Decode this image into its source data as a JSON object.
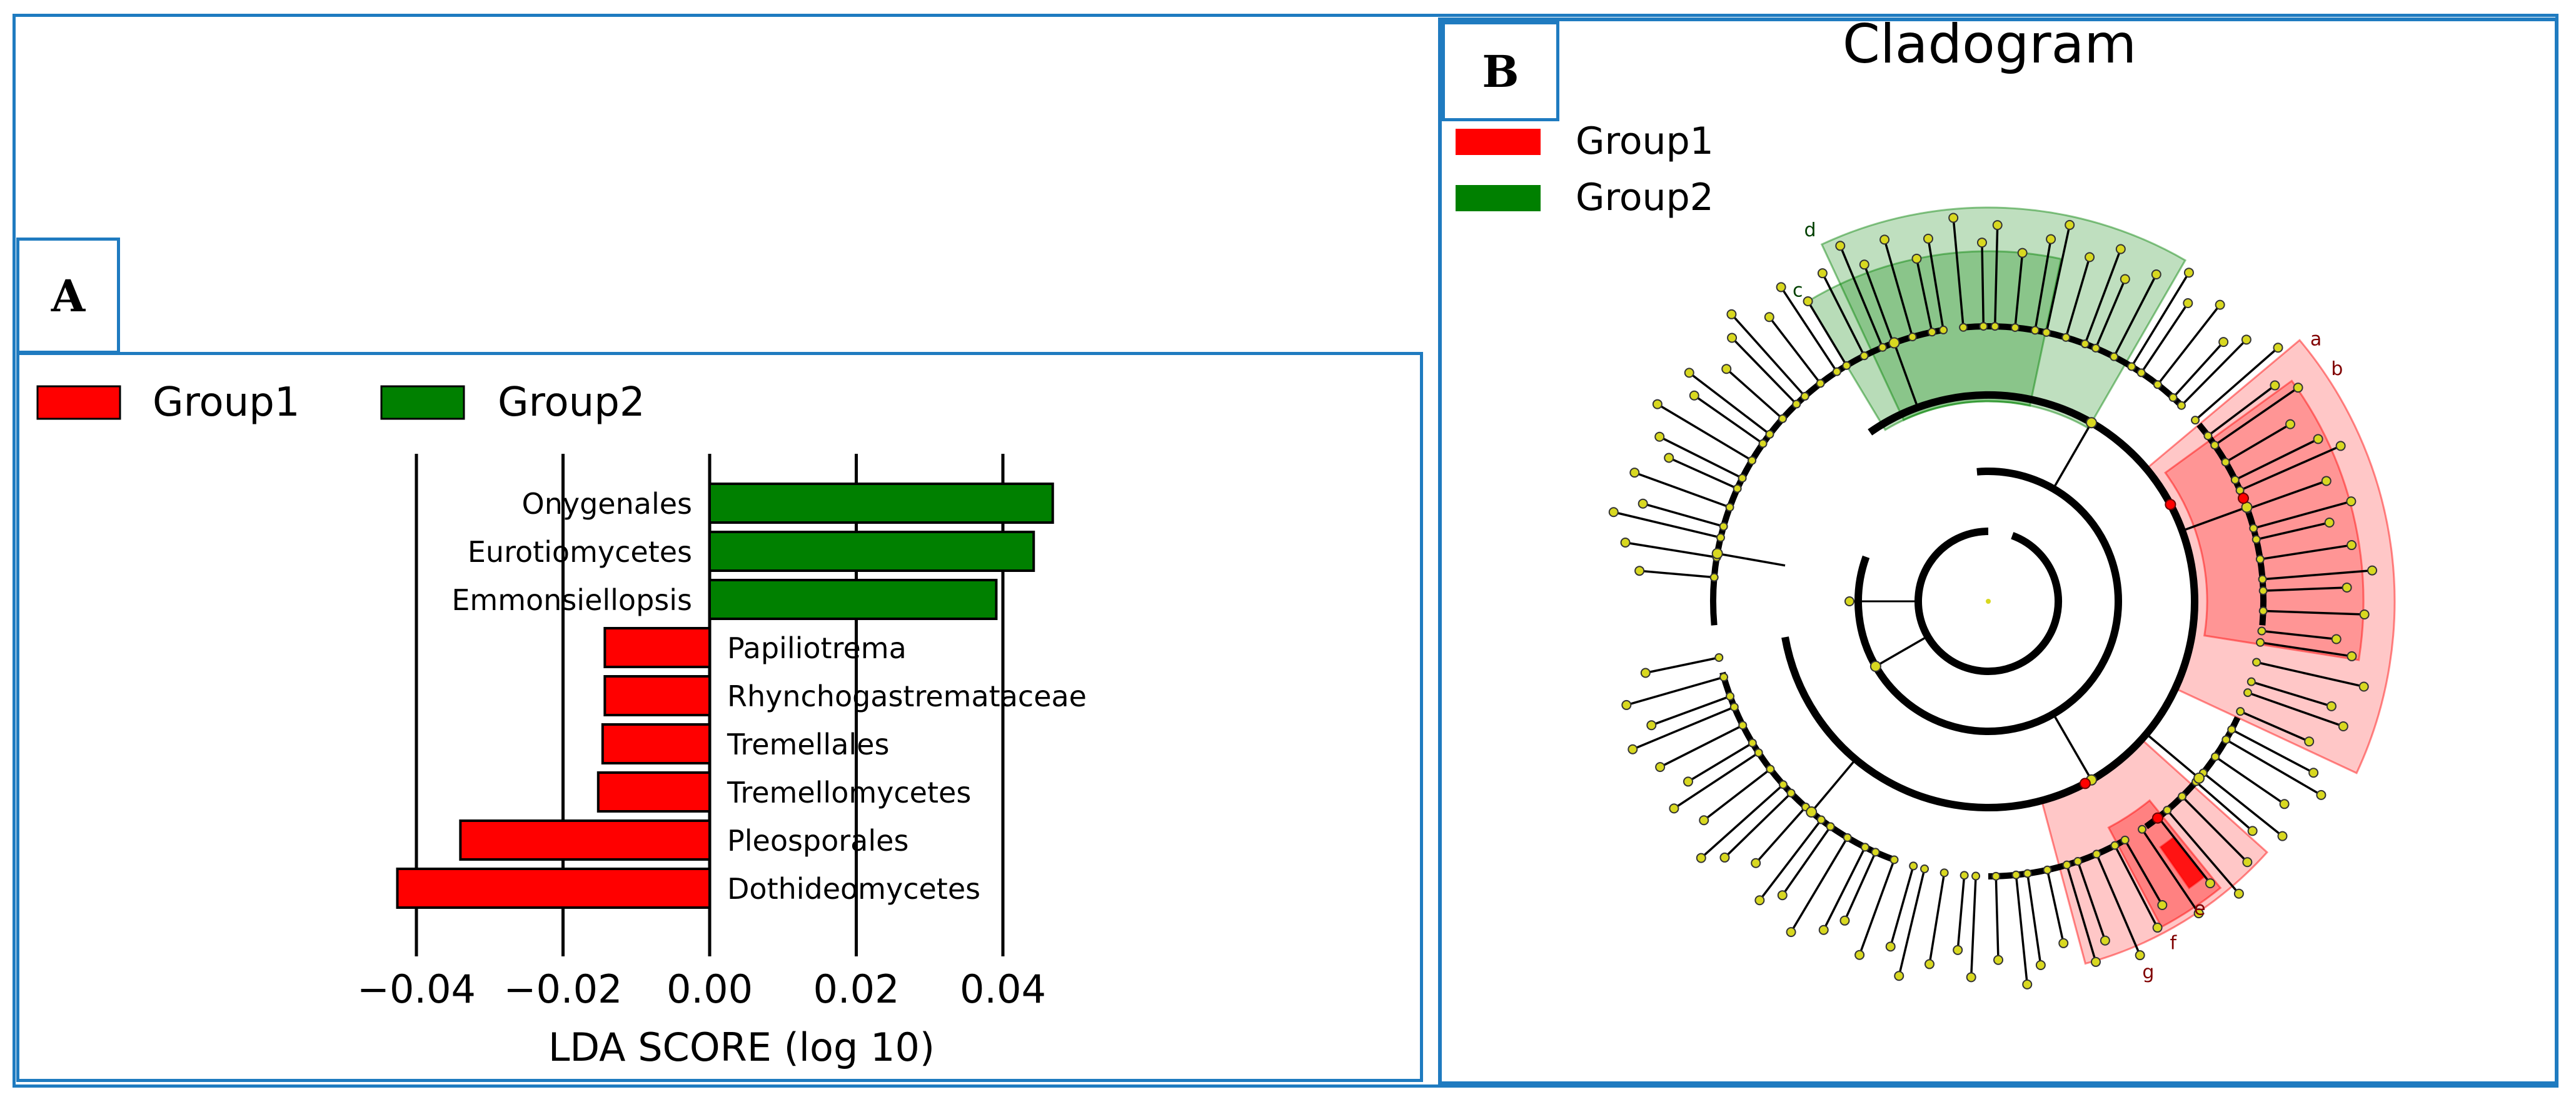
{
  "panel_a": {
    "label": "A"
  },
  "panel_b": {
    "label": "B"
  },
  "legend": [
    {
      "name": "Group1",
      "color": "#ff0000"
    },
    {
      "name": "Group2",
      "color": "#008000"
    }
  ],
  "chart_data": [
    {
      "type": "bar",
      "orientation": "horizontal",
      "title": "",
      "xlabel": "LDA SCORE (log 10)",
      "ylabel": "",
      "xlim": [
        -0.043,
        0.047
      ],
      "xticks": [
        -0.04,
        -0.02,
        0.0,
        0.02,
        0.04
      ],
      "xtick_labels": [
        "−0.04",
        "−0.02",
        "0.00",
        "0.02",
        "0.04"
      ],
      "grid": "vertical",
      "legend": [
        "Group1",
        "Group2"
      ],
      "categories": [
        "Onygenales",
        "Eurotiomycetes",
        "Emmonsiellopsis",
        "Papiliotrema",
        "Rhynchogastremataceae",
        "Tremellales",
        "Tremellomycetes",
        "Pleosporales",
        "Dothideomycetes"
      ],
      "values": [
        0.0468,
        0.0442,
        0.0391,
        -0.0143,
        -0.0143,
        -0.0146,
        -0.0152,
        -0.034,
        -0.0426
      ],
      "groups": [
        "Group2",
        "Group2",
        "Group2",
        "Group1",
        "Group1",
        "Group1",
        "Group1",
        "Group1",
        "Group1"
      ]
    },
    {
      "type": "cladogram",
      "title": "Cladogram",
      "legend": [
        "Group1",
        "Group2"
      ],
      "highlighted_clades": [
        {
          "label": "d",
          "group": "Group2"
        },
        {
          "label": "c",
          "group": "Group2"
        },
        {
          "label": "a",
          "group": "Group1"
        },
        {
          "label": "b",
          "group": "Group1"
        },
        {
          "label": "e",
          "group": "Group1"
        },
        {
          "label": "f",
          "group": "Group1"
        },
        {
          "label": "g",
          "group": "Group1"
        }
      ]
    }
  ]
}
